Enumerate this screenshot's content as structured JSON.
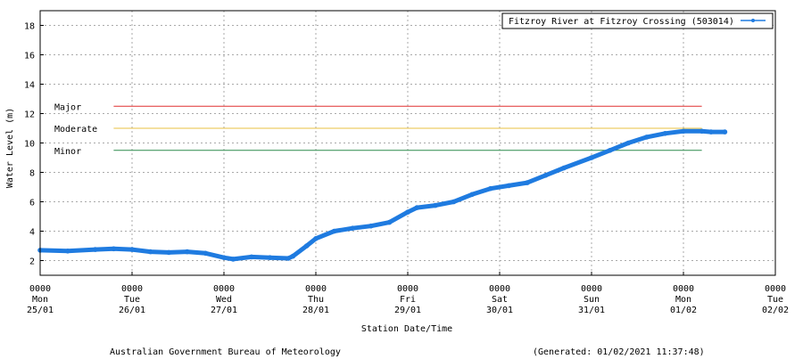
{
  "chart_data": {
    "type": "line",
    "title": "",
    "xlabel": "Station Date/Time",
    "ylabel": "Water Level (m)",
    "ylim": [
      1,
      19
    ],
    "yticks": [
      2,
      4,
      6,
      8,
      10,
      12,
      14,
      16,
      18
    ],
    "grid": true,
    "legend_position": "top-right",
    "x_ticks": [
      {
        "time": "0000",
        "day": "Mon",
        "date": "25/01"
      },
      {
        "time": "0000",
        "day": "Tue",
        "date": "26/01"
      },
      {
        "time": "0000",
        "day": "Wed",
        "date": "27/01"
      },
      {
        "time": "0000",
        "day": "Thu",
        "date": "28/01"
      },
      {
        "time": "0000",
        "day": "Fri",
        "date": "29/01"
      },
      {
        "time": "0000",
        "day": "Sat",
        "date": "30/01"
      },
      {
        "time": "0000",
        "day": "Sun",
        "date": "31/01"
      },
      {
        "time": "0000",
        "day": "Mon",
        "date": "01/02"
      },
      {
        "time": "0000",
        "day": "Tue",
        "date": "02/02"
      }
    ],
    "xrange_days": [
      0,
      8
    ],
    "series": [
      {
        "name": "Fitzroy River at Fitzroy Crossing (503014)",
        "color": "#1f7be0",
        "points": [
          [
            0.0,
            2.7
          ],
          [
            0.3,
            2.65
          ],
          [
            0.6,
            2.75
          ],
          [
            0.8,
            2.8
          ],
          [
            1.0,
            2.75
          ],
          [
            1.2,
            2.6
          ],
          [
            1.4,
            2.55
          ],
          [
            1.6,
            2.6
          ],
          [
            1.8,
            2.5
          ],
          [
            2.0,
            2.2
          ],
          [
            2.1,
            2.1
          ],
          [
            2.3,
            2.25
          ],
          [
            2.5,
            2.2
          ],
          [
            2.7,
            2.15
          ],
          [
            2.75,
            2.3
          ],
          [
            2.9,
            3.0
          ],
          [
            3.0,
            3.5
          ],
          [
            3.2,
            4.0
          ],
          [
            3.4,
            4.2
          ],
          [
            3.6,
            4.35
          ],
          [
            3.8,
            4.6
          ],
          [
            4.0,
            5.3
          ],
          [
            4.1,
            5.6
          ],
          [
            4.3,
            5.75
          ],
          [
            4.5,
            6.0
          ],
          [
            4.7,
            6.5
          ],
          [
            4.9,
            6.9
          ],
          [
            5.1,
            7.1
          ],
          [
            5.3,
            7.3
          ],
          [
            5.5,
            7.8
          ],
          [
            5.7,
            8.3
          ],
          [
            6.0,
            9.0
          ],
          [
            6.2,
            9.5
          ],
          [
            6.4,
            10.0
          ],
          [
            6.6,
            10.4
          ],
          [
            6.8,
            10.65
          ],
          [
            7.0,
            10.8
          ],
          [
            7.2,
            10.8
          ],
          [
            7.3,
            10.75
          ],
          [
            7.45,
            10.75
          ]
        ]
      }
    ],
    "thresholds": [
      {
        "name": "Major",
        "value": 12.5,
        "color": "#e03030",
        "x_start": 0.8,
        "x_end": 7.2
      },
      {
        "name": "Moderate",
        "value": 11.0,
        "color": "#e8c040",
        "x_start": 0.8,
        "x_end": 7.2
      },
      {
        "name": "Minor",
        "value": 9.5,
        "color": "#2a8a4a",
        "x_start": 0.8,
        "x_end": 7.2
      }
    ]
  },
  "footer": {
    "source": "Australian Government Bureau of Meteorology",
    "generated": "(Generated: 01/02/2021 11:37:48)"
  }
}
